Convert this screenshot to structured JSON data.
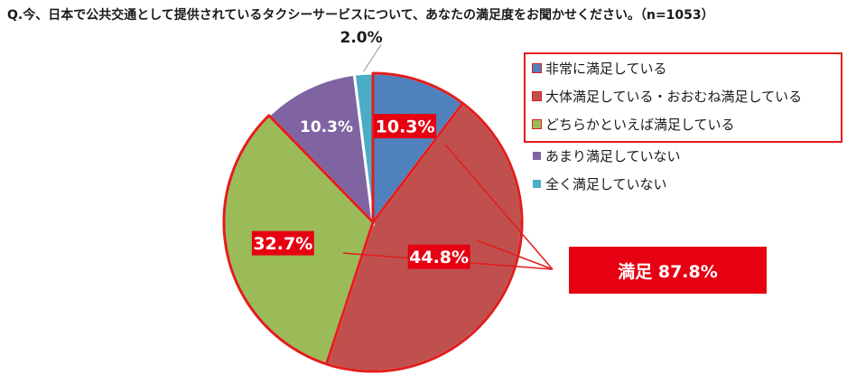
{
  "title": "Q.今、日本で公共交通として提供されているタクシーサービスについて、あなたの満足度をお聞かせください。（n=1053）",
  "chart_data": {
    "type": "pie",
    "start": "12 o'clock, clockwise",
    "slices": [
      {
        "name": "非常に満足している",
        "value": 10.3,
        "label": "10.3%",
        "color": "#4f81bd",
        "highlight": true
      },
      {
        "name": "大体満足している・おおむね満足している",
        "value": 44.8,
        "label": "44.8%",
        "color": "#c0504d",
        "highlight": true
      },
      {
        "name": "どちらかといえば満足している",
        "value": 32.7,
        "label": "32.7%",
        "color": "#9bbb59",
        "highlight": true
      },
      {
        "name": "あまり満足していない",
        "value": 10.3,
        "label": "10.3%",
        "color": "#8064a2",
        "highlight": false
      },
      {
        "name": "全く満足していない",
        "value": 2.0,
        "label": "2.0%",
        "color": "#4bacc6",
        "highlight": false
      }
    ],
    "legend_position": "right",
    "callout": {
      "label": "満足 87.8%",
      "value": 87.8
    }
  }
}
